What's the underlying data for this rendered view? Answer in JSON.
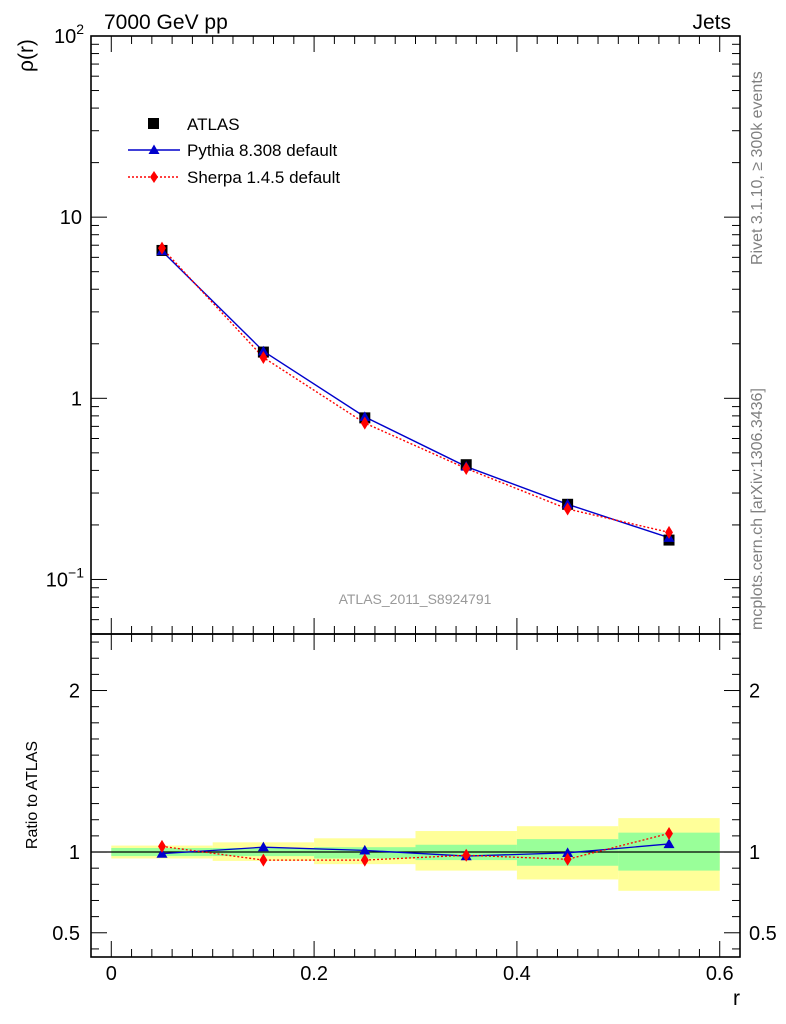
{
  "header": {
    "left_title": "7000 GeV pp",
    "right_title": "Jets"
  },
  "side_labels": {
    "rivet": "Rivet 3.1.10, ≥ 300k events",
    "source": "mcplots.cern.ch [arXiv:1306.3436]"
  },
  "chart_data": [
    {
      "type": "line",
      "panel": "main",
      "ylabel": "ρ(r)",
      "yscale": "log",
      "ylim": [
        0.05,
        100
      ],
      "xlim": [
        -0.02,
        0.62
      ],
      "watermark": "ATLAS_2011_S8924791",
      "x": [
        0.05,
        0.15,
        0.25,
        0.35,
        0.45,
        0.55
      ],
      "series": [
        {
          "name": "ATLAS",
          "marker": "square",
          "color": "#000000",
          "values": [
            6.55,
            1.8,
            0.78,
            0.43,
            0.26,
            0.165
          ]
        },
        {
          "name": "Pythia 8.308 default",
          "marker": "triangle",
          "color": "#0000cc",
          "line": "solid",
          "values": [
            6.5,
            1.82,
            0.79,
            0.42,
            0.26,
            0.17
          ]
        },
        {
          "name": "Sherpa 1.4.5 default",
          "marker": "diamond",
          "color": "#ff0000",
          "line": "dotted",
          "values": [
            6.75,
            1.68,
            0.73,
            0.41,
            0.245,
            0.182
          ]
        }
      ],
      "yticks": [
        {
          "label": "10",
          "sup": "−1",
          "value": 0.1
        },
        {
          "label": "1",
          "sup": "",
          "value": 1
        },
        {
          "label": "10",
          "sup": "",
          "value": 10
        },
        {
          "label": "10",
          "sup": "2",
          "value": 100
        }
      ]
    },
    {
      "type": "line",
      "panel": "ratio",
      "ylabel": "Ratio to ATLAS",
      "xlabel": "r",
      "ylim": [
        0.35,
        2.35
      ],
      "xlim": [
        -0.02,
        0.62
      ],
      "x": [
        0.05,
        0.15,
        0.25,
        0.35,
        0.45,
        0.55
      ],
      "bands": [
        {
          "x0": 0.0,
          "x1": 0.1,
          "inner": [
            0.975,
            1.025
          ],
          "outer": [
            0.96,
            1.04
          ]
        },
        {
          "x0": 0.1,
          "x1": 0.2,
          "inner": [
            0.975,
            1.025
          ],
          "outer": [
            0.945,
            1.06
          ]
        },
        {
          "x0": 0.2,
          "x1": 0.3,
          "inner": [
            0.96,
            1.03
          ],
          "outer": [
            0.925,
            1.085
          ]
        },
        {
          "x0": 0.3,
          "x1": 0.4,
          "inner": [
            0.95,
            1.045
          ],
          "outer": [
            0.885,
            1.13
          ]
        },
        {
          "x0": 0.4,
          "x1": 0.5,
          "inner": [
            0.915,
            1.08
          ],
          "outer": [
            0.83,
            1.16
          ]
        },
        {
          "x0": 0.5,
          "x1": 0.6,
          "inner": [
            0.885,
            1.12
          ],
          "outer": [
            0.76,
            1.21
          ]
        }
      ],
      "series": [
        {
          "name": "Pythia 8.308 default",
          "marker": "triangle",
          "color": "#0000cc",
          "values": [
            0.99,
            1.03,
            1.01,
            0.975,
            0.995,
            1.05
          ]
        },
        {
          "name": "Sherpa 1.4.5 default",
          "marker": "diamond",
          "color": "#ff0000",
          "values": [
            1.035,
            0.95,
            0.95,
            0.98,
            0.955,
            1.115
          ],
          "err": [
            0.01,
            0.015,
            0.025,
            0.025,
            0.025,
            0.02
          ]
        }
      ],
      "yticks": [
        {
          "label": "0.5",
          "value": 0.5
        },
        {
          "label": "1",
          "value": 1
        },
        {
          "label": "2",
          "value": 2
        }
      ],
      "xticks": [
        {
          "label": "0",
          "value": 0
        },
        {
          "label": "0.2",
          "value": 0.2
        },
        {
          "label": "0.4",
          "value": 0.4
        },
        {
          "label": "0.6",
          "value": 0.6
        }
      ]
    }
  ]
}
